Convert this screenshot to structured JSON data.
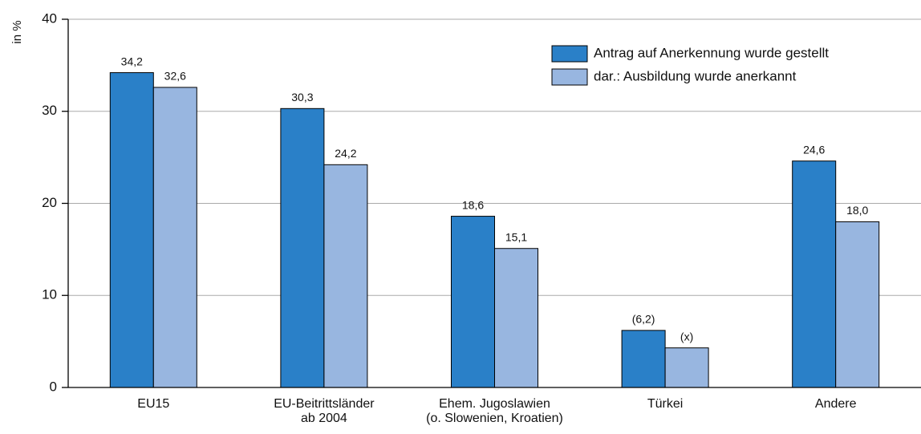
{
  "chart_data": {
    "type": "bar",
    "ylabel": "in %",
    "categories": [
      "EU15",
      "EU-Beitrittsländer\nab 2004",
      "Ehem. Jugoslawien\n(o. Slowenien, Kroatien)",
      "Türkei",
      "Andere"
    ],
    "series": [
      {
        "name": "Antrag auf Anerkennung wurde gestellt",
        "color": "#2a80c8",
        "values": [
          34.2,
          30.3,
          18.6,
          6.2,
          24.6
        ],
        "value_labels": [
          "34,2",
          "30,3",
          "18,6",
          "(6,2)",
          "24,6"
        ]
      },
      {
        "name": "dar.: Ausbildung wurde anerkannt",
        "color": "#98b6e0",
        "values": [
          32.6,
          24.2,
          15.1,
          4.3,
          18.0
        ],
        "value_labels": [
          "32,6",
          "24,2",
          "15,1",
          "(x)",
          "18,0"
        ]
      }
    ],
    "ylim": [
      0,
      40
    ],
    "yticks": [
      0,
      10,
      20,
      30,
      40
    ],
    "grid": true,
    "legend": "upper right"
  }
}
